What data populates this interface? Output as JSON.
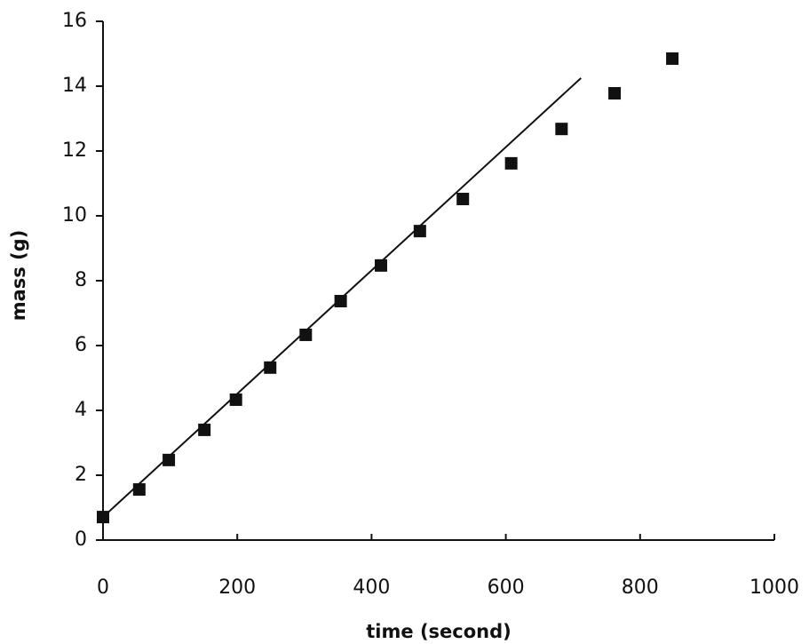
{
  "chart_data": {
    "type": "scatter",
    "x_label": "time (second)",
    "y_label": "mass (g)",
    "xlim": [
      0,
      1000
    ],
    "xticks": [
      0,
      200,
      400,
      600,
      800,
      1000
    ],
    "ylim": [
      0,
      16
    ],
    "yticks": [
      0,
      2,
      4,
      6,
      8,
      10,
      12,
      14,
      16
    ],
    "series": [
      {
        "mode": "markers",
        "color": "#111111",
        "x": [
          0,
          54,
          98,
          151,
          198,
          249,
          302,
          354,
          414,
          472,
          536,
          608,
          683,
          762,
          848
        ],
        "values": [
          0.71,
          1.56,
          2.47,
          3.4,
          4.33,
          5.32,
          6.33,
          7.37,
          8.47,
          9.53,
          10.52,
          11.62,
          12.68,
          13.78,
          14.85
        ]
      },
      {
        "mode": "line",
        "color": "#111111",
        "x": [
          0,
          712
        ],
        "values": [
          0.71,
          14.25
        ]
      }
    ]
  }
}
